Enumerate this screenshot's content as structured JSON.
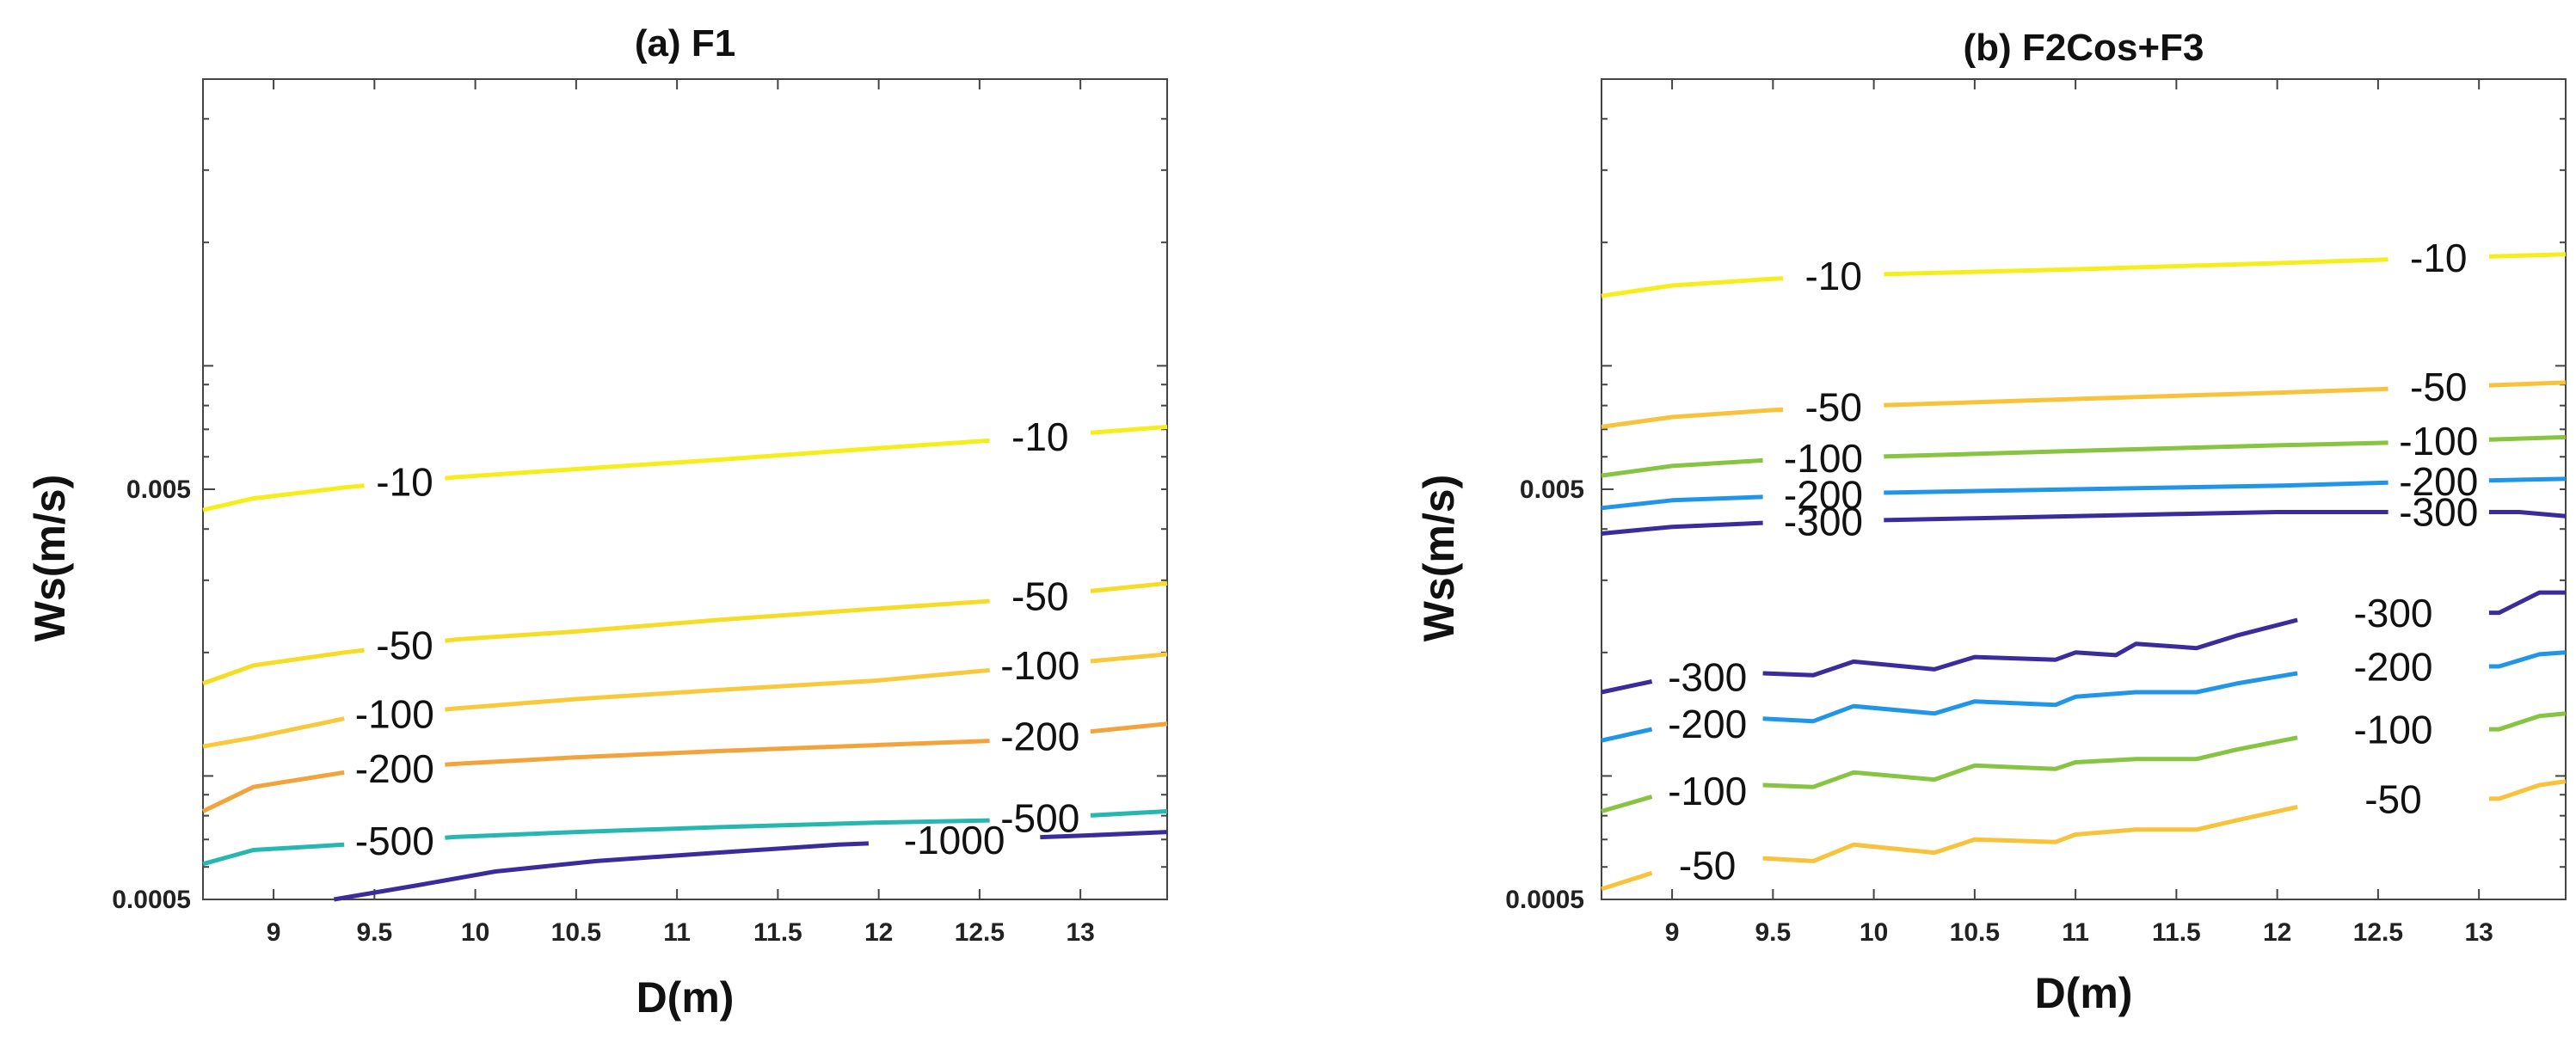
{
  "chart_data": [
    {
      "type": "line",
      "title": "(a) F1",
      "xlabel": "D(m)",
      "ylabel": "Ws(m/s)",
      "xlim": [
        8.65,
        13.43
      ],
      "ylim": [
        0.0005,
        0.05
      ],
      "yscale": "log",
      "x_ticks": [
        9,
        9.5,
        10,
        10.5,
        11,
        11.5,
        12,
        12.5,
        13
      ],
      "x_tick_labels": [
        "9",
        "9.5",
        "10",
        "10.5",
        "11",
        "11.5",
        "12",
        "12.5",
        "13"
      ],
      "y_ticks": [
        0.0005,
        0.005
      ],
      "y_tick_labels": [
        "0.0005",
        "0.005"
      ],
      "series": [
        {
          "name": "-10",
          "label": "-10",
          "color": "#f5ee1a",
          "points": [
            [
              8.65,
              0.00445
            ],
            [
              8.9,
              0.00475
            ],
            [
              9.35,
              0.00505
            ],
            [
              9.9,
              0.00535
            ],
            [
              10.5,
              0.0056
            ],
            [
              11.2,
              0.0059
            ],
            [
              12,
              0.0063
            ],
            [
              12.6,
              0.0066
            ],
            [
              13.43,
              0.0071
            ]
          ],
          "gaps": [
            [
              9.45,
              9.85
            ],
            [
              12.55,
              13.05
            ]
          ]
        },
        {
          "name": "-50",
          "label": "-50",
          "color": "#f5dd25",
          "points": [
            [
              8.65,
              0.00168
            ],
            [
              8.9,
              0.00186
            ],
            [
              9.35,
              0.002
            ],
            [
              9.9,
              0.00215
            ],
            [
              10.5,
              0.00225
            ],
            [
              11.2,
              0.0024
            ],
            [
              12,
              0.00256
            ],
            [
              12.6,
              0.00268
            ],
            [
              13.43,
              0.00295
            ]
          ],
          "gaps": [
            [
              9.45,
              9.85
            ],
            [
              12.55,
              13.05
            ]
          ]
        },
        {
          "name": "-100",
          "label": "-100",
          "color": "#f8c93a",
          "points": [
            [
              8.65,
              0.00118
            ],
            [
              8.9,
              0.00124
            ],
            [
              9.35,
              0.00138
            ],
            [
              9.9,
              0.00146
            ],
            [
              10.5,
              0.00154
            ],
            [
              11.2,
              0.00162
            ],
            [
              12,
              0.00171
            ],
            [
              12.6,
              0.00182
            ],
            [
              13.43,
              0.00198
            ]
          ],
          "gaps": [
            [
              9.35,
              9.85
            ],
            [
              12.55,
              13.05
            ]
          ]
        },
        {
          "name": "-200",
          "label": "-200",
          "color": "#f2a33c",
          "points": [
            [
              8.65,
              0.00082
            ],
            [
              8.9,
              0.00094
            ],
            [
              9.35,
              0.00102
            ],
            [
              9.9,
              0.00107
            ],
            [
              10.5,
              0.00111
            ],
            [
              11.2,
              0.00115
            ],
            [
              12,
              0.00119
            ],
            [
              12.6,
              0.00122
            ],
            [
              13.43,
              0.00134
            ]
          ],
          "gaps": [
            [
              9.35,
              9.85
            ],
            [
              12.55,
              13.05
            ]
          ]
        },
        {
          "name": "-500",
          "label": "-500",
          "color": "#25b7b0",
          "points": [
            [
              8.65,
              0.00061
            ],
            [
              8.9,
              0.00066
            ],
            [
              9.35,
              0.00068
            ],
            [
              9.9,
              0.00071
            ],
            [
              10.5,
              0.00073
            ],
            [
              11.2,
              0.00075
            ],
            [
              12,
              0.00077
            ],
            [
              12.6,
              0.00078
            ],
            [
              13.43,
              0.00082
            ]
          ],
          "gaps": [
            [
              9.35,
              9.85
            ],
            [
              12.55,
              13.05
            ]
          ]
        },
        {
          "name": "-1000",
          "label": "-1000",
          "color": "#3a2c9c",
          "points": [
            [
              9.3,
              0.0005
            ],
            [
              9.7,
              0.00054
            ],
            [
              10.1,
              0.000585
            ],
            [
              10.6,
              0.00062
            ],
            [
              11.2,
              0.00065
            ],
            [
              11.8,
              0.00068
            ],
            [
              12.3,
              0.000695
            ],
            [
              13,
              0.000715
            ],
            [
              13.43,
              0.00073
            ]
          ],
          "gaps": [
            [
              11.95,
              12.8
            ]
          ]
        }
      ]
    },
    {
      "type": "line",
      "title": "(b) F2Cos+F3",
      "xlabel": "D(m)",
      "ylabel": "Ws(m/s)",
      "xlim": [
        8.65,
        13.43
      ],
      "ylim": [
        0.0005,
        0.05
      ],
      "yscale": "log",
      "x_ticks": [
        9,
        9.5,
        10,
        10.5,
        11,
        11.5,
        12,
        12.5,
        13
      ],
      "x_tick_labels": [
        "9",
        "9.5",
        "10",
        "10.5",
        "11",
        "11.5",
        "12",
        "12.5",
        "13"
      ],
      "y_ticks": [
        0.0005,
        0.005
      ],
      "y_tick_labels": [
        "0.0005",
        "0.005"
      ],
      "series": [
        {
          "name": "-10 upper",
          "label": "-10",
          "color": "#f5ee1a",
          "points": [
            [
              8.65,
              0.0148
            ],
            [
              9,
              0.0157
            ],
            [
              9.5,
              0.0163
            ],
            [
              10,
              0.0167
            ],
            [
              11,
              0.0172
            ],
            [
              12,
              0.0178
            ],
            [
              12.6,
              0.0182
            ],
            [
              13.43,
              0.0187
            ]
          ],
          "gaps": [
            [
              9.55,
              10.05
            ],
            [
              12.55,
              13.05
            ]
          ]
        },
        {
          "name": "-50 upper",
          "label": "-50",
          "color": "#f8c23a",
          "points": [
            [
              8.65,
              0.0071
            ],
            [
              9,
              0.0075
            ],
            [
              9.5,
              0.0078
            ],
            [
              10,
              0.008
            ],
            [
              11,
              0.0083
            ],
            [
              12,
              0.0086
            ],
            [
              12.6,
              0.0088
            ],
            [
              13.43,
              0.0091
            ]
          ],
          "gaps": [
            [
              9.55,
              10.05
            ],
            [
              12.55,
              13.05
            ]
          ]
        },
        {
          "name": "-100 upper",
          "label": "-100",
          "color": "#86c441",
          "points": [
            [
              8.65,
              0.0054
            ],
            [
              9,
              0.0057
            ],
            [
              9.5,
              0.0059
            ],
            [
              10,
              0.006
            ],
            [
              11,
              0.0062
            ],
            [
              12,
              0.0064
            ],
            [
              12.6,
              0.0065
            ],
            [
              13.43,
              0.0067
            ]
          ],
          "gaps": [
            [
              9.45,
              10.05
            ],
            [
              12.55,
              13.05
            ]
          ]
        },
        {
          "name": "-200 upper",
          "label": "-200",
          "color": "#2196e8",
          "points": [
            [
              8.65,
              0.0045
            ],
            [
              9,
              0.0047
            ],
            [
              9.5,
              0.0048
            ],
            [
              10,
              0.0049
            ],
            [
              11,
              0.005
            ],
            [
              12,
              0.0051
            ],
            [
              12.6,
              0.0052
            ],
            [
              13.43,
              0.0053
            ]
          ],
          "gaps": [
            [
              9.45,
              10.05
            ],
            [
              12.55,
              13.05
            ]
          ]
        },
        {
          "name": "-300 upper",
          "label": "-300",
          "color": "#3a2c9c",
          "points": [
            [
              8.65,
              0.0039
            ],
            [
              9,
              0.00405
            ],
            [
              9.5,
              0.00415
            ],
            [
              10,
              0.0042
            ],
            [
              10.5,
              0.00425
            ],
            [
              11,
              0.0043
            ],
            [
              11.5,
              0.00435
            ],
            [
              12,
              0.0044
            ],
            [
              12.6,
              0.0044
            ],
            [
              13.2,
              0.0044
            ],
            [
              13.43,
              0.0043
            ]
          ],
          "gaps": [
            [
              9.45,
              10.05
            ],
            [
              12.55,
              13.05
            ]
          ]
        },
        {
          "name": "-300 lower",
          "label": "-300",
          "color": "#3a2c9c",
          "points": [
            [
              8.65,
              0.0016
            ],
            [
              8.9,
              0.0017
            ],
            [
              9.45,
              0.00178
            ],
            [
              9.7,
              0.00176
            ],
            [
              9.9,
              0.0019
            ],
            [
              10.3,
              0.00182
            ],
            [
              10.5,
              0.00195
            ],
            [
              10.9,
              0.00192
            ],
            [
              11,
              0.002
            ],
            [
              11.2,
              0.00197
            ],
            [
              11.3,
              0.0021
            ],
            [
              11.6,
              0.00205
            ],
            [
              11.8,
              0.0022
            ],
            [
              12.1,
              0.0024
            ],
            [
              12.6,
              0.0025
            ],
            [
              13.1,
              0.0025
            ],
            [
              13.3,
              0.0028
            ],
            [
              13.43,
              0.0028
            ]
          ],
          "gaps": [
            [
              8.9,
              9.45
            ],
            [
              12.1,
              13.05
            ]
          ]
        },
        {
          "name": "-200 lower",
          "label": "-200",
          "color": "#2196e8",
          "points": [
            [
              8.65,
              0.00122
            ],
            [
              8.9,
              0.0013
            ],
            [
              9.45,
              0.00138
            ],
            [
              9.7,
              0.00136
            ],
            [
              9.9,
              0.00148
            ],
            [
              10.3,
              0.00142
            ],
            [
              10.5,
              0.00152
            ],
            [
              10.9,
              0.00149
            ],
            [
              11,
              0.00156
            ],
            [
              11.3,
              0.0016
            ],
            [
              11.6,
              0.0016
            ],
            [
              11.8,
              0.00168
            ],
            [
              12.1,
              0.00178
            ],
            [
              12.6,
              0.00185
            ],
            [
              13.1,
              0.00185
            ],
            [
              13.3,
              0.00198
            ],
            [
              13.43,
              0.002
            ]
          ],
          "gaps": [
            [
              8.9,
              9.45
            ],
            [
              12.1,
              13.05
            ]
          ]
        },
        {
          "name": "-100 lower",
          "label": "-100",
          "color": "#86c441",
          "points": [
            [
              8.65,
              0.00082
            ],
            [
              8.9,
              0.00089
            ],
            [
              9.45,
              0.00095
            ],
            [
              9.7,
              0.00094
            ],
            [
              9.9,
              0.00102
            ],
            [
              10.3,
              0.00098
            ],
            [
              10.5,
              0.00106
            ],
            [
              10.9,
              0.00104
            ],
            [
              11,
              0.00108
            ],
            [
              11.3,
              0.0011
            ],
            [
              11.6,
              0.0011
            ],
            [
              11.8,
              0.00116
            ],
            [
              12.1,
              0.00124
            ],
            [
              12.6,
              0.0013
            ],
            [
              13.1,
              0.0013
            ],
            [
              13.3,
              0.0014
            ],
            [
              13.43,
              0.00142
            ]
          ],
          "gaps": [
            [
              8.9,
              9.45
            ],
            [
              12.1,
              13.05
            ]
          ]
        },
        {
          "name": "-50 lower",
          "label": "-50",
          "color": "#f8c23a",
          "points": [
            [
              8.65,
              0.00053
            ],
            [
              8.9,
              0.00058
            ],
            [
              9.45,
              0.00063
            ],
            [
              9.7,
              0.00062
            ],
            [
              9.9,
              0.00068
            ],
            [
              10.3,
              0.00065
            ],
            [
              10.5,
              0.0007
            ],
            [
              10.9,
              0.00069
            ],
            [
              11,
              0.00072
            ],
            [
              11.3,
              0.00074
            ],
            [
              11.6,
              0.00074
            ],
            [
              11.8,
              0.00078
            ],
            [
              12.1,
              0.00084
            ],
            [
              12.6,
              0.00088
            ],
            [
              13.1,
              0.00088
            ],
            [
              13.3,
              0.00095
            ],
            [
              13.43,
              0.00097
            ]
          ],
          "gaps": [
            [
              8.9,
              9.45
            ],
            [
              12.1,
              13.05
            ]
          ]
        }
      ]
    }
  ]
}
